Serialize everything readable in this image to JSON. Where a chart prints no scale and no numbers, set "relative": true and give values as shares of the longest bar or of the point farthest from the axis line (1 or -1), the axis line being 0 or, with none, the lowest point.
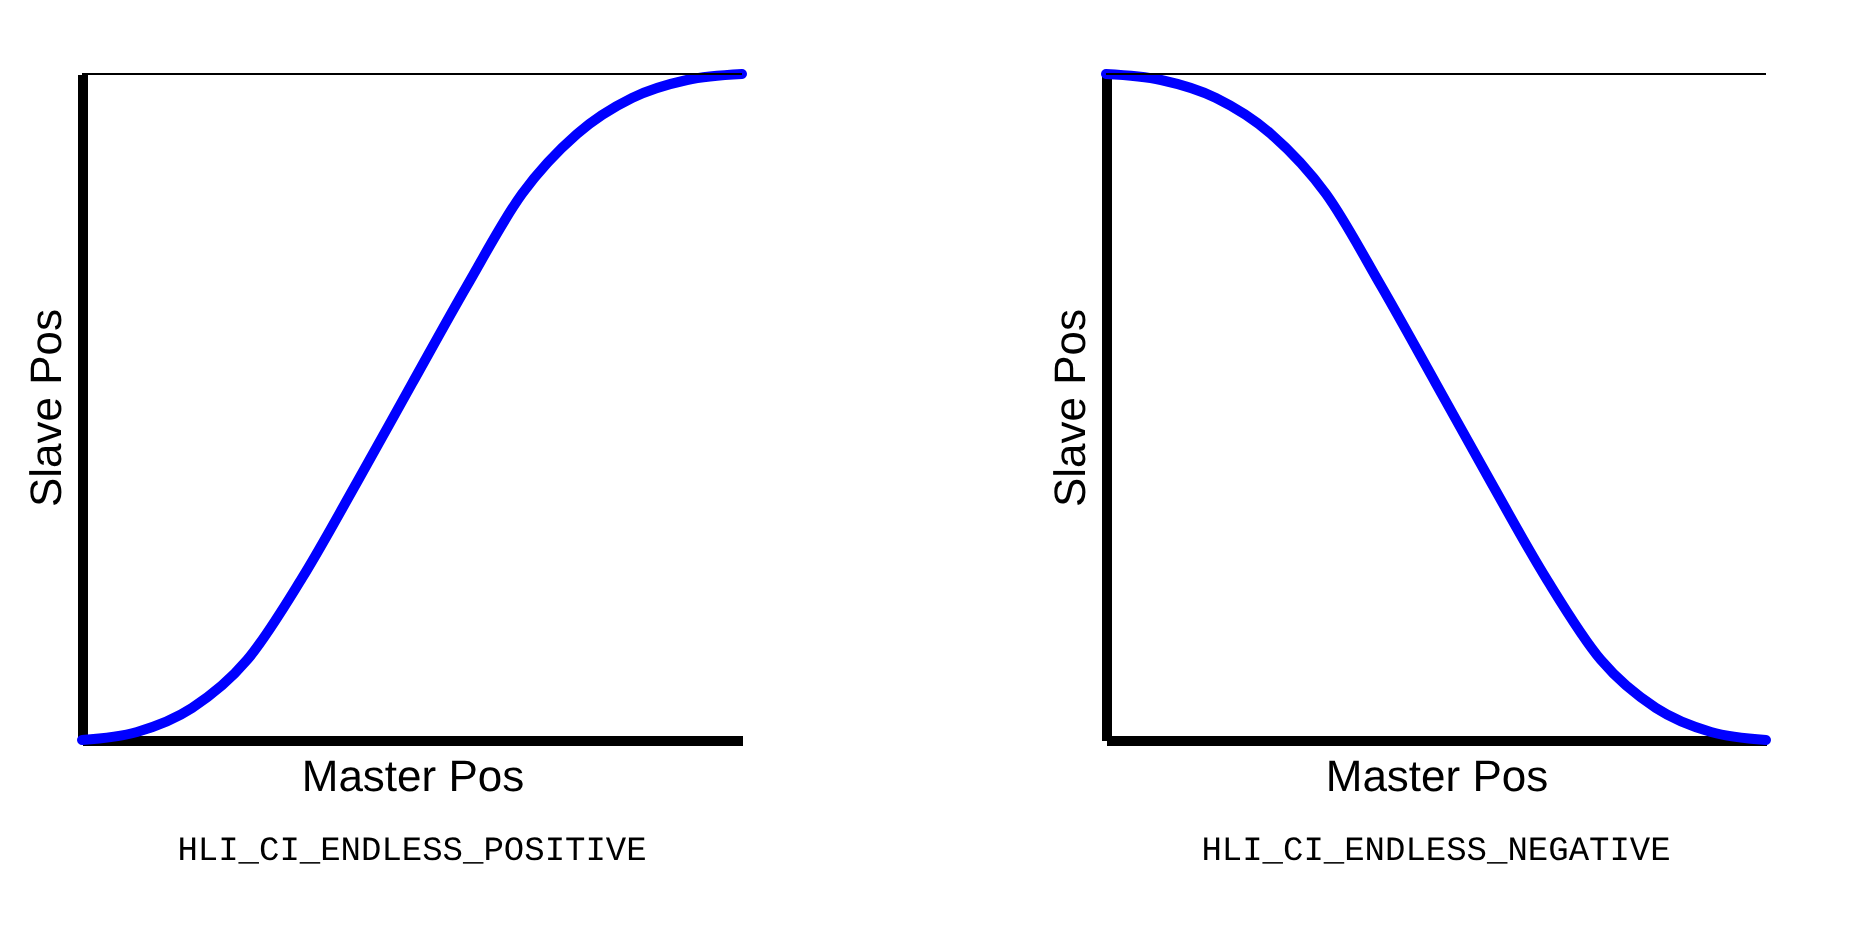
{
  "chart_data": [
    {
      "type": "line",
      "relative": true,
      "xlabel": "Master Pos",
      "ylabel": "Slave Pos",
      "annotations": [
        "HLI_CI_ENDLESS_POSITIVE"
      ],
      "categories": [
        null,
        null,
        null,
        null,
        null,
        null,
        null,
        null,
        null,
        null,
        null,
        null,
        null
      ],
      "series": [
        {
          "color": "#0000ff",
          "values": [
            0,
            0.012,
            0.048,
            0.12,
            0.243,
            0.387,
            0.535,
            0.682,
            0.82,
            0.91,
            0.964,
            0.991,
            1
          ]
        }
      ],
      "ref_lines": [
        {
          "axis": "y",
          "value": 1,
          "color": "#000000"
        }
      ]
    },
    {
      "type": "line",
      "relative": true,
      "xlabel": "Master Pos",
      "ylabel": "Slave Pos",
      "annotations": [
        "HLI_CI_ENDLESS_NEGATIVE"
      ],
      "categories": [
        null,
        null,
        null,
        null,
        null,
        null,
        null,
        null,
        null,
        null,
        null,
        null,
        null
      ],
      "series": [
        {
          "color": "#0000ff",
          "values": [
            1,
            0.991,
            0.964,
            0.91,
            0.82,
            0.682,
            0.535,
            0.387,
            0.243,
            0.12,
            0.048,
            0.012,
            0
          ]
        }
      ],
      "ref_lines": [
        {
          "axis": "y",
          "value": 1,
          "color": "#000000"
        }
      ]
    }
  ]
}
